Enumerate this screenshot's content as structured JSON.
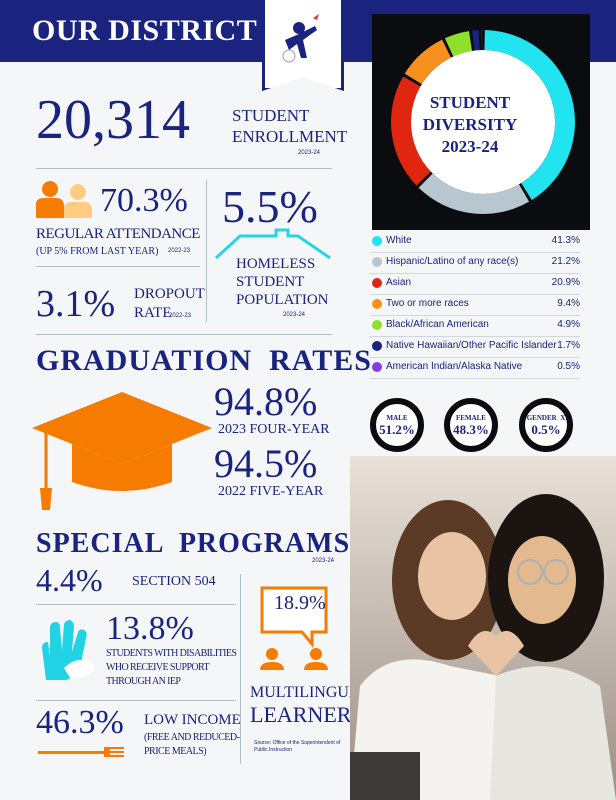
{
  "header": {
    "title": "OUR DISTRICT"
  },
  "enrollment": {
    "value": "20,314",
    "label_line1": "STUDENT",
    "label_line2": "ENROLLMENT",
    "year": "2023-24"
  },
  "attendance": {
    "value": "70.3%",
    "label": "REGULAR ATTENDANCE",
    "sub": "(UP 5% FROM LAST YEAR)",
    "year": "2022-23"
  },
  "homeless": {
    "value": "5.5%",
    "line1": "HOMELESS",
    "line2": "STUDENT",
    "line3": "POPULATION",
    "year": "2023-24"
  },
  "dropout": {
    "value": "3.1%",
    "line1": "DROPOUT",
    "line2": "RATE",
    "year": "2022-23"
  },
  "graduation": {
    "heading": "GRADUATION  RATES",
    "four_year_value": "94.8%",
    "four_year_label": "2023 FOUR-YEAR",
    "five_year_value": "94.5%",
    "five_year_label": "2022 FIVE-YEAR"
  },
  "special": {
    "heading": "SPECIAL  PROGRAMS",
    "year": "2023-24",
    "section504_value": "4.4%",
    "section504_label": "SECTION 504",
    "disab_value": "13.8%",
    "disab_line1": "STUDENTS WITH DISABILITIES",
    "disab_line2": "WHO RECEIVE SUPPORT",
    "disab_line3": "THROUGH AN IEP",
    "ml_value": "18.9%",
    "ml_line1": "MULTILINGUAL",
    "ml_line2": "LEARNER",
    "low_value": "46.3%",
    "low_label": "LOW INCOME",
    "low_sub1": "(FREE AND REDUCED-",
    "low_sub2": "PRICE MEALS)",
    "source": "Source: Office of the Superintendent of Public Instruction"
  },
  "diversity": {
    "title_line1": "STUDENT",
    "title_line2": "DIVERSITY",
    "title_line3": "2023-24",
    "legend": [
      {
        "label": "White",
        "value": "41.3%",
        "color": "#22e4f0"
      },
      {
        "label": "Hispanic/Latino of any race(s)",
        "value": "21.2%",
        "color": "#b8c6cf"
      },
      {
        "label": "Asian",
        "value": "20.9%",
        "color": "#e0260f"
      },
      {
        "label": "Two or more races",
        "value": "9.4%",
        "color": "#f7901e"
      },
      {
        "label": "Black/African American",
        "value": "4.9%",
        "color": "#8ee02a"
      },
      {
        "label": "Native Hawaiian/Other Pacific Islander",
        "value": "1.7%",
        "color": "#1a237e"
      },
      {
        "label": "American Indian/Alaska Native",
        "value": "0.5%",
        "color": "#8a3ce0"
      }
    ]
  },
  "gender": {
    "male_label": "MALE",
    "male_value": "51.2%",
    "female_label": "FEMALE",
    "female_value": "48.3%",
    "x_label": "GENDER",
    "x_letter": "X",
    "x_value": "0.5%"
  },
  "chart_data": {
    "type": "pie",
    "title": "STUDENT DIVERSITY 2023-24",
    "categories": [
      "White",
      "Hispanic/Latino of any race(s)",
      "Asian",
      "Two or more races",
      "Black/African American",
      "Native Hawaiian/Other Pacific Islander",
      "American Indian/Alaska Native"
    ],
    "values": [
      41.3,
      21.2,
      20.9,
      9.4,
      4.9,
      1.7,
      0.5
    ],
    "colors": [
      "#22e4f0",
      "#b8c6cf",
      "#e0260f",
      "#f7901e",
      "#8ee02a",
      "#1a237e",
      "#8a3ce0"
    ]
  }
}
